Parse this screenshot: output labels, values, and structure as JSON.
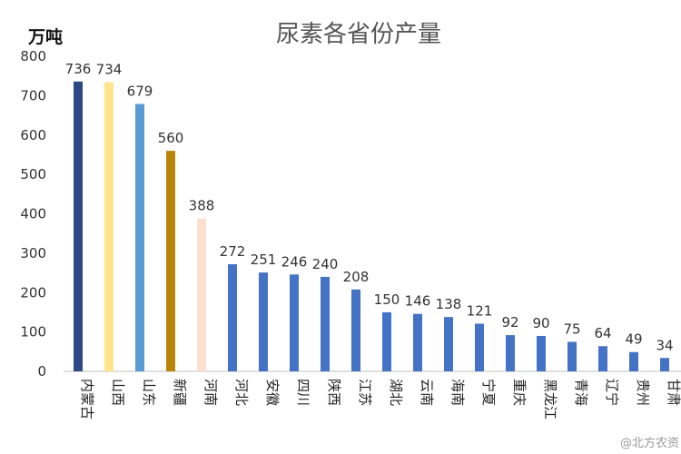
{
  "chart_data": {
    "type": "bar",
    "title": "尿素各省份产量",
    "ylabel": "万吨",
    "xlabel": "",
    "ylim": [
      0,
      800
    ],
    "yticks": [
      0,
      100,
      200,
      300,
      400,
      500,
      600,
      700,
      800
    ],
    "grid": false,
    "legend": "none",
    "categories": [
      "内蒙古",
      "山西",
      "山东",
      "新疆",
      "河南",
      "河北",
      "安徽",
      "四川",
      "陕西",
      "江苏",
      "湖北",
      "云南",
      "海南",
      "宁夏",
      "重庆",
      "黑龙江",
      "青海",
      "辽宁",
      "贵州",
      "甘肃"
    ],
    "values": [
      736,
      734,
      679,
      560,
      388,
      272,
      251,
      246,
      240,
      208,
      150,
      146,
      138,
      121,
      92,
      90,
      75,
      64,
      49,
      34
    ],
    "bar_colors": [
      "#2e4a85",
      "#fde38c",
      "#5b9bd5",
      "#b8860b",
      "#fbe0d0",
      "#4472c4",
      "#4472c4",
      "#4472c4",
      "#4472c4",
      "#4472c4",
      "#4472c4",
      "#4472c4",
      "#4472c4",
      "#4472c4",
      "#4472c4",
      "#4472c4",
      "#4472c4",
      "#4472c4",
      "#4472c4",
      "#4472c4"
    ]
  },
  "watermark": "@北方农资"
}
